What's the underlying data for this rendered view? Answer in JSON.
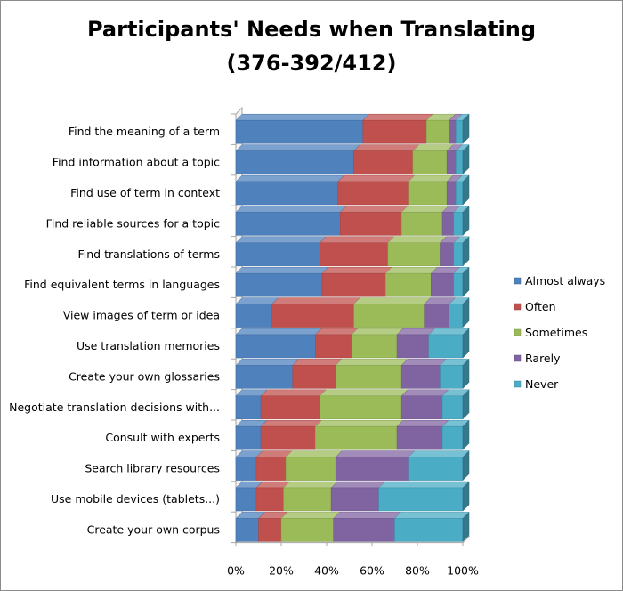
{
  "chart_data": {
    "type": "bar",
    "orientation": "horizontal",
    "stacked": "percent",
    "three_d": true,
    "title": "Participants' Needs when Translating",
    "subtitle": "(376-392/412)",
    "xlabel": "",
    "ylabel": "",
    "xlim": [
      0,
      100
    ],
    "xticks": [
      "0%",
      "20%",
      "40%",
      "60%",
      "80%",
      "100%"
    ],
    "legend_position": "right",
    "grid": false,
    "categories": [
      "Find the meaning of a term",
      "Find information about a topic",
      "Find use of term in context",
      "Find reliable sources for a topic",
      "Find  translations of terms",
      "Find equivalent terms in languages",
      "View images of term or idea",
      "Use translation memories",
      "Create your own glossaries",
      "Negotiate translation decisions with...",
      "Consult with experts",
      "Search library resources",
      "Use mobile devices (tablets...)",
      "Create your own corpus"
    ],
    "series": [
      {
        "name": "Almost always",
        "color": "#4f81bd",
        "values": [
          56,
          52,
          45,
          46,
          37,
          38,
          16,
          35,
          25,
          11,
          11,
          9,
          9,
          10
        ]
      },
      {
        "name": "Often",
        "color": "#c0504d",
        "values": [
          28,
          26,
          31,
          27,
          30,
          28,
          36,
          16,
          19,
          26,
          24,
          13,
          12,
          10
        ]
      },
      {
        "name": "Sometimes",
        "color": "#9bbb59",
        "values": [
          10,
          15,
          17,
          18,
          23,
          20,
          31,
          20,
          29,
          36,
          36,
          22,
          21,
          23
        ]
      },
      {
        "name": "Rarely",
        "color": "#8064a2",
        "values": [
          3,
          4,
          4,
          5,
          6,
          10,
          11,
          14,
          17,
          18,
          20,
          32,
          21,
          27
        ]
      },
      {
        "name": "Never",
        "color": "#4bacc6",
        "values": [
          3,
          3,
          3,
          4,
          4,
          4,
          6,
          15,
          10,
          9,
          9,
          24,
          37,
          30
        ]
      }
    ]
  }
}
